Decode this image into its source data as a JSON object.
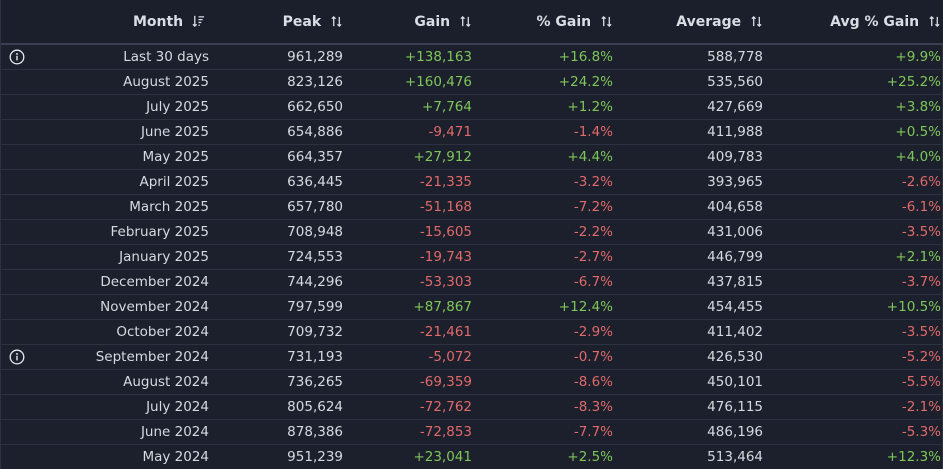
{
  "columns": {
    "month": "Month",
    "peak": "Peak",
    "gain": "Gain",
    "pct_gain": "% Gain",
    "average": "Average",
    "avg_pct_gain": "Avg % Gain"
  },
  "colors": {
    "positive": "#7fc65a",
    "negative": "#e0696a",
    "background": "#1b202c",
    "text": "#d6d9df"
  },
  "rows": [
    {
      "info": true,
      "month": "Last 30 days",
      "peak": "961,289",
      "gain": "+138,163",
      "pct_gain": "+16.8%",
      "average": "588,778",
      "avg_pct_gain": "+9.9%"
    },
    {
      "info": false,
      "month": "August 2025",
      "peak": "823,126",
      "gain": "+160,476",
      "pct_gain": "+24.2%",
      "average": "535,560",
      "avg_pct_gain": "+25.2%"
    },
    {
      "info": false,
      "month": "July 2025",
      "peak": "662,650",
      "gain": "+7,764",
      "pct_gain": "+1.2%",
      "average": "427,669",
      "avg_pct_gain": "+3.8%"
    },
    {
      "info": false,
      "month": "June 2025",
      "peak": "654,886",
      "gain": "-9,471",
      "pct_gain": "-1.4%",
      "average": "411,988",
      "avg_pct_gain": "+0.5%"
    },
    {
      "info": false,
      "month": "May 2025",
      "peak": "664,357",
      "gain": "+27,912",
      "pct_gain": "+4.4%",
      "average": "409,783",
      "avg_pct_gain": "+4.0%"
    },
    {
      "info": false,
      "month": "April 2025",
      "peak": "636,445",
      "gain": "-21,335",
      "pct_gain": "-3.2%",
      "average": "393,965",
      "avg_pct_gain": "-2.6%"
    },
    {
      "info": false,
      "month": "March 2025",
      "peak": "657,780",
      "gain": "-51,168",
      "pct_gain": "-7.2%",
      "average": "404,658",
      "avg_pct_gain": "-6.1%"
    },
    {
      "info": false,
      "month": "February 2025",
      "peak": "708,948",
      "gain": "-15,605",
      "pct_gain": "-2.2%",
      "average": "431,006",
      "avg_pct_gain": "-3.5%"
    },
    {
      "info": false,
      "month": "January 2025",
      "peak": "724,553",
      "gain": "-19,743",
      "pct_gain": "-2.7%",
      "average": "446,799",
      "avg_pct_gain": "+2.1%"
    },
    {
      "info": false,
      "month": "December 2024",
      "peak": "744,296",
      "gain": "-53,303",
      "pct_gain": "-6.7%",
      "average": "437,815",
      "avg_pct_gain": "-3.7%"
    },
    {
      "info": false,
      "month": "November 2024",
      "peak": "797,599",
      "gain": "+87,867",
      "pct_gain": "+12.4%",
      "average": "454,455",
      "avg_pct_gain": "+10.5%"
    },
    {
      "info": false,
      "month": "October 2024",
      "peak": "709,732",
      "gain": "-21,461",
      "pct_gain": "-2.9%",
      "average": "411,402",
      "avg_pct_gain": "-3.5%"
    },
    {
      "info": true,
      "month": "September 2024",
      "peak": "731,193",
      "gain": "-5,072",
      "pct_gain": "-0.7%",
      "average": "426,530",
      "avg_pct_gain": "-5.2%"
    },
    {
      "info": false,
      "month": "August 2024",
      "peak": "736,265",
      "gain": "-69,359",
      "pct_gain": "-8.6%",
      "average": "450,101",
      "avg_pct_gain": "-5.5%"
    },
    {
      "info": false,
      "month": "July 2024",
      "peak": "805,624",
      "gain": "-72,762",
      "pct_gain": "-8.3%",
      "average": "476,115",
      "avg_pct_gain": "-2.1%"
    },
    {
      "info": false,
      "month": "June 2024",
      "peak": "878,386",
      "gain": "-72,853",
      "pct_gain": "-7.7%",
      "average": "486,196",
      "avg_pct_gain": "-5.3%"
    },
    {
      "info": false,
      "month": "May 2024",
      "peak": "951,239",
      "gain": "+23,041",
      "pct_gain": "+2.5%",
      "average": "513,464",
      "avg_pct_gain": "+12.3%"
    }
  ]
}
